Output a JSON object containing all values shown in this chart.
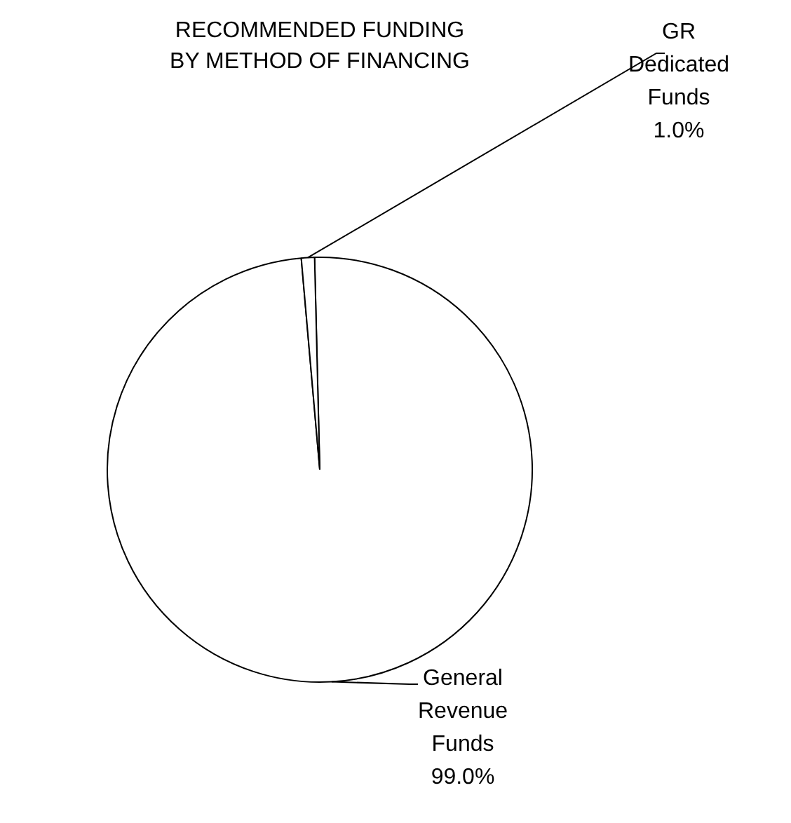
{
  "chart_data": {
    "type": "pie",
    "title": "RECOMMENDED FUNDING\nBY METHOD OF FINANCING",
    "categories": [
      "General Revenue Funds",
      "GR Dedicated Funds"
    ],
    "values": [
      99.0,
      1.0
    ],
    "value_labels": [
      "99.0%",
      "1.0%"
    ],
    "colors": [
      "#ffffff",
      "#ffffff"
    ],
    "legend": false
  }
}
